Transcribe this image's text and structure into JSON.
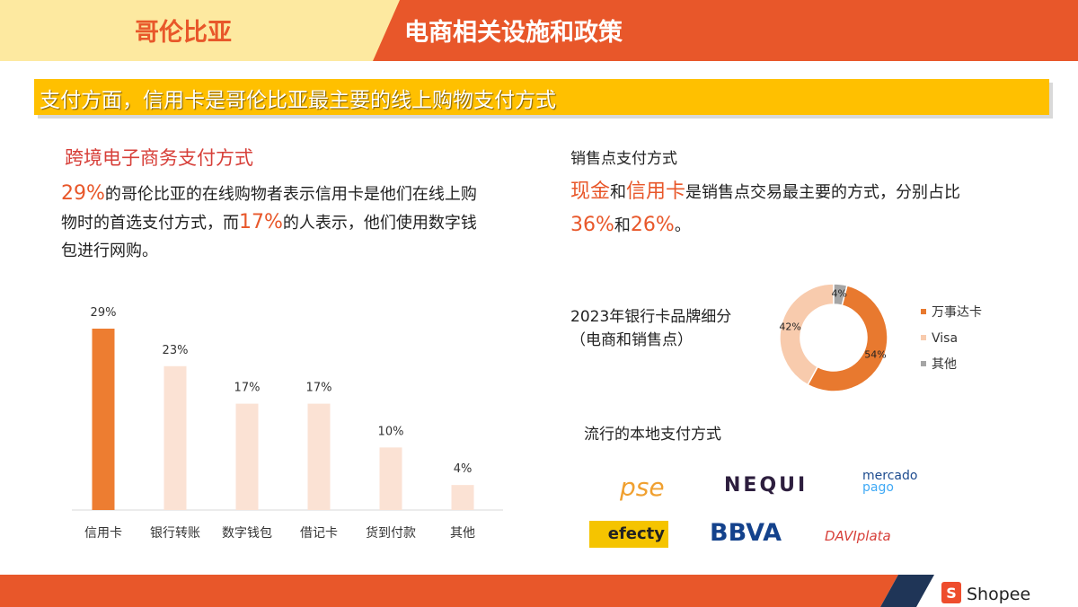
{
  "header": {
    "country": "哥伦比亚",
    "title": "电商相关设施和政策"
  },
  "banner": "支付方面，信用卡是哥伦比亚最主要的线上购物支付方式",
  "left": {
    "heading": "跨境电子商务支付方式",
    "paragraph": [
      {
        "text": "29%",
        "emphasis": true
      },
      {
        "text": "的哥伦比亚的在线购物者表示信用卡是他们在线上购物时的首选支付方式，而"
      },
      {
        "text": "17%",
        "emphasis": true
      },
      {
        "text": "的人表示，他们使用数字钱包进行网购。"
      }
    ]
  },
  "right": {
    "heading": "销售点支付方式",
    "paragraph": [
      {
        "text": "现金",
        "emphasis": true
      },
      {
        "text": "和"
      },
      {
        "text": "信用卡",
        "emphasis": true
      },
      {
        "text": "是销售点交易最主要的方式，分别占比"
      },
      {
        "text": "36%",
        "emphasis": true
      },
      {
        "text": "和"
      },
      {
        "text": "26%",
        "emphasis": true
      },
      {
        "text": "。"
      }
    ],
    "local_heading": "流行的本地支付方式"
  },
  "chart_data": [
    {
      "type": "bar",
      "categories": [
        "信用卡",
        "银行转账",
        "数字钱包",
        "借记卡",
        "货到付款",
        "其他"
      ],
      "values": [
        29,
        23,
        17,
        17,
        10,
        4
      ],
      "value_labels": [
        "29%",
        "23%",
        "17%",
        "17%",
        "10%",
        "4%"
      ],
      "colors": [
        "#ED7D31",
        "#FBE2D4",
        "#FBE2D4",
        "#FBE2D4",
        "#FBE2D4",
        "#FBE2D4"
      ]
    },
    {
      "type": "pie",
      "title": "2023年银行卡品牌细分（电商和销售点）",
      "categories": [
        "万事达卡",
        "Visa",
        "其他"
      ],
      "values": [
        54,
        42,
        4
      ],
      "value_labels": [
        "54%",
        "42%",
        "4%"
      ],
      "colors": [
        "#E8792F",
        "#F8CBAD",
        "#A5A5A5"
      ]
    }
  ],
  "logos": [
    "pse",
    "NEQUI",
    "mercado",
    "pago",
    "efecty",
    "BBVA",
    "DAVIplata"
  ],
  "footer": {
    "brand": "Shopee"
  }
}
